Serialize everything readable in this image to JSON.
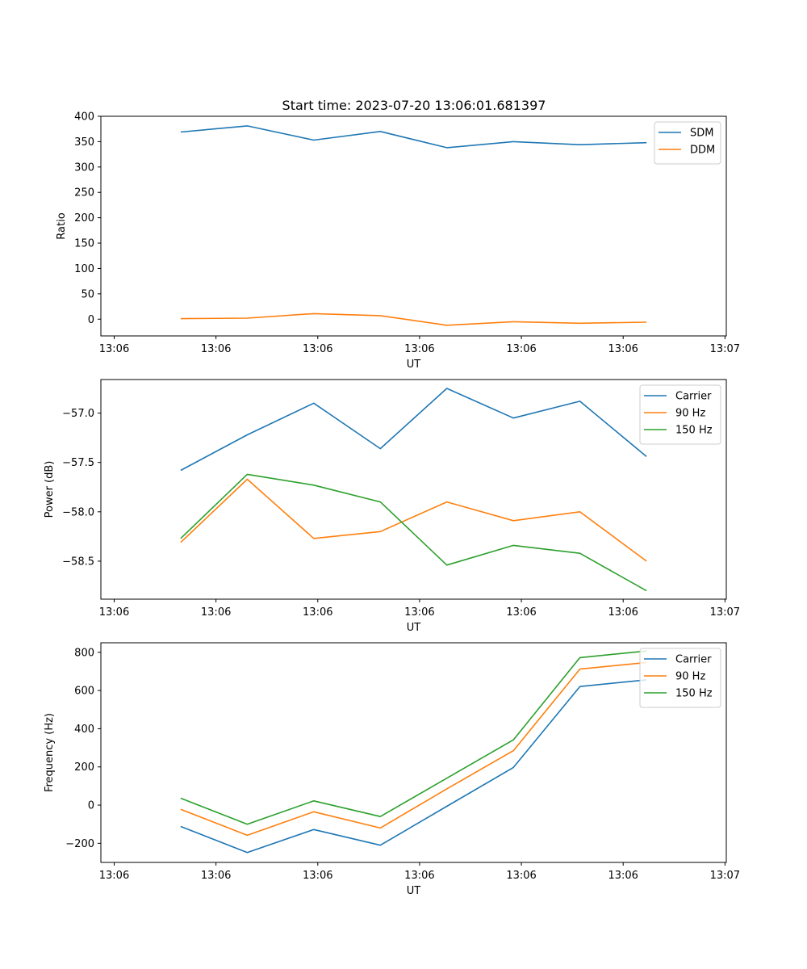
{
  "figure": {
    "suptitle": "Start time: 2023-07-20 13:06:01.681397"
  },
  "chart_data": [
    {
      "type": "line",
      "title": "Start time: 2023-07-20 13:06:01.681397",
      "xlabel": "UT",
      "ylabel": "Ratio",
      "x": [
        1,
        2,
        3,
        4,
        5,
        6,
        7,
        8
      ],
      "xlim": [
        -0.2,
        9.2
      ],
      "xticks": [
        0,
        1.53,
        3.06,
        4.59,
        6.12,
        7.65,
        9.18
      ],
      "xtick_labels": [
        "13:06",
        "13:06",
        "13:06",
        "13:06",
        "13:06",
        "13:06",
        "13:07"
      ],
      "ylim": [
        -33,
        400
      ],
      "yticks": [
        0,
        50,
        100,
        150,
        200,
        250,
        300,
        350,
        400
      ],
      "ytick_labels": [
        "0",
        "50",
        "100",
        "150",
        "200",
        "250",
        "300",
        "350",
        "400"
      ],
      "legend": "top-right",
      "series": [
        {
          "name": "SDM",
          "color": "#1f77b4",
          "values": [
            369,
            381,
            353,
            370,
            338,
            350,
            344,
            348
          ]
        },
        {
          "name": "DDM",
          "color": "#ff7f0e",
          "values": [
            1,
            2,
            11,
            7,
            -12,
            -5,
            -8,
            -6
          ]
        }
      ]
    },
    {
      "type": "line",
      "xlabel": "UT",
      "ylabel": "Power (dB)",
      "x": [
        1,
        2,
        3,
        4,
        5,
        6,
        7,
        8
      ],
      "xlim": [
        -0.2,
        9.2
      ],
      "xticks": [
        0,
        1.53,
        3.06,
        4.59,
        6.12,
        7.65,
        9.18
      ],
      "xtick_labels": [
        "13:06",
        "13:06",
        "13:06",
        "13:06",
        "13:06",
        "13:06",
        "13:07"
      ],
      "ylim": [
        -58.885,
        -56.66
      ],
      "yticks": [
        -58.5,
        -58.0,
        -57.5,
        -57.0
      ],
      "ytick_labels": [
        "−58.5",
        "−58.0",
        "−57.5",
        "−57.0"
      ],
      "legend": "top-right",
      "series": [
        {
          "name": "Carrier",
          "color": "#1f77b4",
          "values": [
            -57.58,
            -57.22,
            -56.9,
            -57.36,
            -56.75,
            -57.05,
            -56.88,
            -57.44
          ]
        },
        {
          "name": "90 Hz",
          "color": "#ff7f0e",
          "values": [
            -58.31,
            -57.67,
            -58.27,
            -58.2,
            -57.9,
            -58.09,
            -58.0,
            -58.5
          ]
        },
        {
          "name": "150 Hz",
          "color": "#2ca02c",
          "values": [
            -58.27,
            -57.62,
            -57.73,
            -57.9,
            -58.54,
            -58.34,
            -58.42,
            -58.8
          ]
        }
      ]
    },
    {
      "type": "line",
      "xlabel": "UT",
      "ylabel": "Frequency (Hz)",
      "x": [
        1,
        2,
        3,
        4,
        5,
        6,
        7,
        8
      ],
      "xlim": [
        -0.2,
        9.2
      ],
      "xticks": [
        0,
        1.53,
        3.06,
        4.59,
        6.12,
        7.65,
        9.18
      ],
      "xtick_labels": [
        "13:06",
        "13:06",
        "13:06",
        "13:06",
        "13:06",
        "13:06",
        "13:07"
      ],
      "ylim": [
        -300,
        850
      ],
      "yticks": [
        -200,
        0,
        200,
        400,
        600,
        800
      ],
      "ytick_labels": [
        "−200",
        "0",
        "200",
        "400",
        "600",
        "800"
      ],
      "legend": "top-right",
      "series": [
        {
          "name": "Carrier",
          "color": "#1f77b4",
          "values": [
            -112,
            -248,
            -128,
            -210,
            -6,
            197,
            621,
            656
          ]
        },
        {
          "name": "90 Hz",
          "color": "#ff7f0e",
          "values": [
            -22,
            -158,
            -35,
            -120,
            85,
            285,
            712,
            747
          ]
        },
        {
          "name": "150 Hz",
          "color": "#2ca02c",
          "values": [
            36,
            -100,
            22,
            -60,
            141,
            342,
            772,
            807
          ]
        }
      ]
    }
  ]
}
